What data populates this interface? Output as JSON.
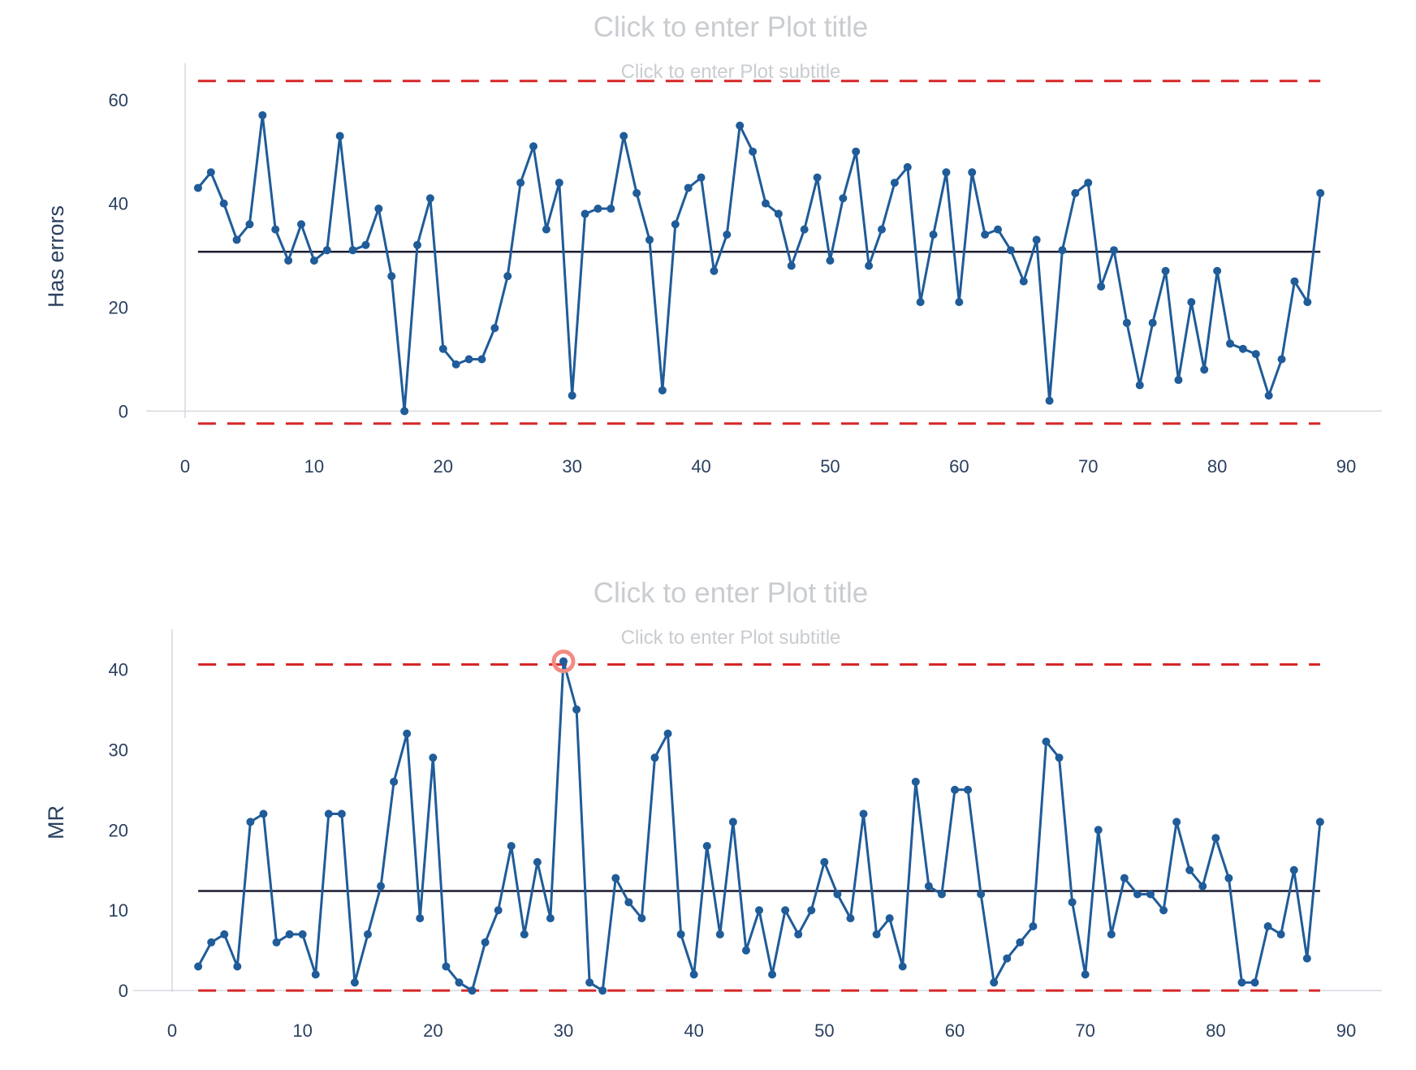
{
  "chart_data": [
    {
      "type": "line",
      "title": "Click to enter Plot title",
      "subtitle": "Click to enter Plot subtitle",
      "xlabel": "",
      "ylabel": "Has errors",
      "xlim": [
        0,
        90
      ],
      "ylim": [
        -4,
        67
      ],
      "xticks": [
        0,
        10,
        20,
        30,
        40,
        50,
        60,
        70,
        80,
        90
      ],
      "yticks": [
        0,
        20,
        40,
        60
      ],
      "grid": false,
      "colors": {
        "series": "#1f5c99",
        "center": "#1a1a2e",
        "limits": "#d62728"
      },
      "x": [
        1,
        2,
        3,
        4,
        5,
        6,
        7,
        8,
        9,
        10,
        11,
        12,
        13,
        14,
        15,
        16,
        17,
        18,
        19,
        20,
        21,
        22,
        23,
        24,
        25,
        26,
        27,
        28,
        29,
        30,
        31,
        32,
        33,
        34,
        35,
        36,
        37,
        38,
        39,
        40,
        41,
        42,
        43,
        44,
        45,
        46,
        47,
        48,
        49,
        50,
        51,
        52,
        53,
        54,
        55,
        56,
        57,
        58,
        59,
        60,
        61,
        62,
        63,
        64,
        65,
        66,
        67,
        68,
        69,
        70,
        71,
        72,
        73,
        74,
        75,
        76,
        77,
        78,
        79,
        80,
        81,
        82,
        83,
        84,
        85,
        86,
        87,
        88
      ],
      "values": [
        43,
        46,
        40,
        33,
        36,
        57,
        35,
        29,
        36,
        29,
        31,
        53,
        31,
        32,
        39,
        26,
        0,
        32,
        41,
        12,
        9,
        10,
        10,
        16,
        26,
        44,
        51,
        35,
        44,
        3,
        38,
        39,
        39,
        53,
        42,
        33,
        4,
        36,
        43,
        45,
        27,
        34,
        55,
        50,
        40,
        38,
        28,
        35,
        45,
        29,
        41,
        50,
        28,
        35,
        44,
        47,
        21,
        34,
        46,
        21,
        46,
        34,
        35,
        31,
        25,
        33,
        2,
        31,
        42,
        44,
        24,
        31,
        17,
        5,
        17,
        27,
        6,
        21,
        8,
        27,
        13,
        12,
        11,
        3,
        10,
        25,
        21,
        42
      ],
      "center_line": {
        "value": 30.7,
        "x_range": [
          1,
          88
        ]
      },
      "upper_limit": {
        "value": 63.6,
        "x_range": [
          1,
          88
        ]
      },
      "lower_limit": {
        "value": -2.4,
        "x_range": [
          1,
          88
        ]
      }
    },
    {
      "type": "line",
      "title": "Click to enter Plot title",
      "subtitle": "Click to enter Plot subtitle",
      "xlabel": "",
      "ylabel": "MR",
      "xlim": [
        0,
        90
      ],
      "ylim": [
        -1.5,
        45
      ],
      "xticks": [
        0,
        10,
        20,
        30,
        40,
        50,
        60,
        70,
        80,
        90
      ],
      "yticks": [
        0,
        10,
        20,
        30,
        40
      ],
      "grid": false,
      "colors": {
        "series": "#1f5c99",
        "center": "#1a1a2e",
        "limits": "#d62728",
        "highlight": "#f28b82"
      },
      "x": [
        2,
        3,
        4,
        5,
        6,
        7,
        8,
        9,
        10,
        11,
        12,
        13,
        14,
        15,
        16,
        17,
        18,
        19,
        20,
        21,
        22,
        23,
        24,
        25,
        26,
        27,
        28,
        29,
        30,
        31,
        32,
        33,
        34,
        35,
        36,
        37,
        38,
        39,
        40,
        41,
        42,
        43,
        44,
        45,
        46,
        47,
        48,
        49,
        50,
        51,
        52,
        53,
        54,
        55,
        56,
        57,
        58,
        59,
        60,
        61,
        62,
        63,
        64,
        65,
        66,
        67,
        68,
        69,
        70,
        71,
        72,
        73,
        74,
        75,
        76,
        77,
        78,
        79,
        80,
        81,
        82,
        83,
        84,
        85,
        86,
        87,
        88
      ],
      "values": [
        3,
        6,
        7,
        3,
        21,
        22,
        6,
        7,
        7,
        2,
        22,
        22,
        1,
        7,
        13,
        26,
        32,
        9,
        29,
        3,
        1,
        0,
        6,
        10,
        18,
        7,
        16,
        9,
        41,
        35,
        1,
        0,
        14,
        11,
        9,
        29,
        32,
        7,
        2,
        18,
        7,
        21,
        5,
        10,
        2,
        10,
        7,
        10,
        16,
        12,
        9,
        22,
        7,
        9,
        3,
        26,
        13,
        12,
        25,
        25,
        12,
        1,
        4,
        6,
        8,
        31,
        29,
        11,
        2,
        20,
        7,
        14,
        12,
        12,
        10,
        21,
        15,
        13,
        19,
        14,
        1,
        1,
        8,
        7,
        15,
        4,
        21
      ],
      "center_line": {
        "value": 12.4,
        "x_range": [
          2,
          88
        ]
      },
      "upper_limit": {
        "value": 40.6,
        "x_range": [
          2,
          88
        ]
      },
      "lower_limit": {
        "value": 0,
        "x_range": [
          2,
          88
        ]
      },
      "highlighted_points": [
        30
      ]
    }
  ]
}
